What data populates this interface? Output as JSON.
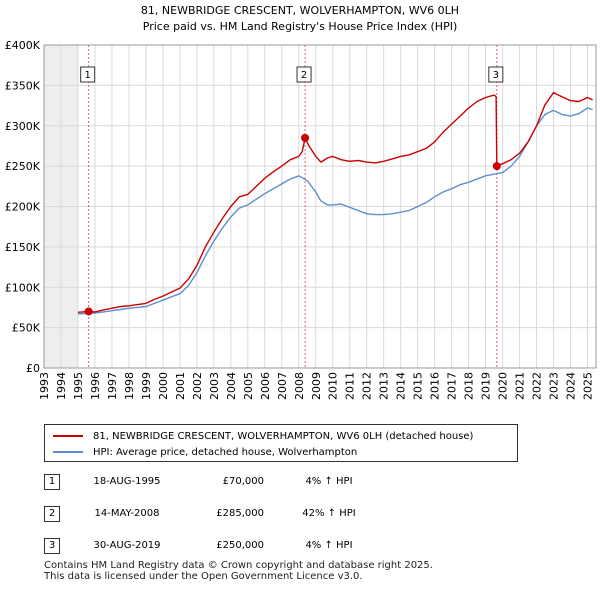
{
  "title": {
    "line1": "81, NEWBRIDGE CRESCENT, WOLVERHAMPTON, WV6 0LH",
    "line2": "Price paid vs. HM Land Registry's House Price Index (HPI)"
  },
  "colors": {
    "price_paid": "#cc0000",
    "hpi": "#5b8fd0",
    "grid": "#d9d9d9",
    "shade": "#eeeeee",
    "vline": "#e06060"
  },
  "chart_data": {
    "type": "line",
    "title": "81, NEWBRIDGE CRESCENT, WOLVERHAMPTON, WV6 0LH — Price paid vs. HM Land Registry's House Price Index (HPI)",
    "xlabel": "",
    "ylabel": "",
    "xlim": [
      1993,
      2025.5
    ],
    "ylim": [
      0,
      400000
    ],
    "x_ticks": [
      "1993",
      "1994",
      "1995",
      "1996",
      "1997",
      "1998",
      "1999",
      "2000",
      "2001",
      "2002",
      "2003",
      "2004",
      "2005",
      "2006",
      "2007",
      "2008",
      "2009",
      "2010",
      "2011",
      "2012",
      "2013",
      "2014",
      "2015",
      "2016",
      "2017",
      "2018",
      "2019",
      "2020",
      "2021",
      "2022",
      "2023",
      "2024",
      "2025"
    ],
    "y_ticks": [
      {
        "value": 0,
        "label": "£0"
      },
      {
        "value": 50000,
        "label": "£50K"
      },
      {
        "value": 100000,
        "label": "£100K"
      },
      {
        "value": 150000,
        "label": "£150K"
      },
      {
        "value": 200000,
        "label": "£200K"
      },
      {
        "value": 250000,
        "label": "£250K"
      },
      {
        "value": 300000,
        "label": "£300K"
      },
      {
        "value": 350000,
        "label": "£350K"
      },
      {
        "value": 400000,
        "label": "£400K"
      }
    ],
    "grid": true,
    "shaded_range": [
      1993,
      1995.0
    ],
    "series": [
      {
        "name": "81, NEWBRIDGE CRESCENT, WOLVERHAMPTON, WV6 0LH (detached house)",
        "x": [
          1995.0,
          1995.63,
          1996.0,
          1996.5,
          1997.0,
          1997.5,
          1998.0,
          1998.5,
          1999.0,
          1999.5,
          2000.0,
          2000.5,
          2001.0,
          2001.5,
          2002.0,
          2002.5,
          2003.0,
          2003.5,
          2004.0,
          2004.5,
          2005.0,
          2005.5,
          2006.0,
          2006.5,
          2007.0,
          2007.5,
          2008.0,
          2008.2,
          2008.37,
          2008.6,
          2009.0,
          2009.3,
          2009.7,
          2010.0,
          2010.5,
          2011.0,
          2011.5,
          2012.0,
          2012.5,
          2013.0,
          2013.5,
          2014.0,
          2014.5,
          2015.0,
          2015.5,
          2016.0,
          2016.5,
          2017.0,
          2017.5,
          2018.0,
          2018.5,
          2019.0,
          2019.5,
          2019.62,
          2019.66,
          2020.0,
          2020.5,
          2021.0,
          2021.5,
          2022.0,
          2022.5,
          2023.0,
          2023.5,
          2024.0,
          2024.5,
          2025.0,
          2025.3
        ],
        "values": [
          69000,
          70000,
          69500,
          72000,
          74000,
          76000,
          77000,
          78500,
          80000,
          85000,
          89000,
          94000,
          99000,
          110000,
          127000,
          150000,
          168000,
          185000,
          200000,
          212000,
          215000,
          225000,
          235000,
          243000,
          250000,
          258000,
          262000,
          268000,
          285000,
          275000,
          262000,
          255000,
          260000,
          262000,
          258000,
          256000,
          257000,
          255000,
          254000,
          256000,
          259000,
          262000,
          264000,
          268000,
          272000,
          280000,
          292000,
          302000,
          312000,
          322000,
          330000,
          335000,
          338000,
          336000,
          250000,
          253000,
          258000,
          266000,
          280000,
          300000,
          326000,
          341000,
          336000,
          331000,
          330000,
          335000,
          332000
        ]
      },
      {
        "name": "HPI: Average price, detached house, Wolverhampton",
        "x": [
          1995.0,
          1995.5,
          1996.0,
          1996.5,
          1997.0,
          1997.5,
          1998.0,
          1998.5,
          1999.0,
          1999.5,
          2000.0,
          2000.5,
          2001.0,
          2001.5,
          2002.0,
          2002.5,
          2003.0,
          2003.5,
          2004.0,
          2004.5,
          2005.0,
          2005.5,
          2006.0,
          2006.5,
          2007.0,
          2007.5,
          2008.0,
          2008.5,
          2009.0,
          2009.3,
          2009.7,
          2010.0,
          2010.5,
          2011.0,
          2011.5,
          2012.0,
          2012.5,
          2013.0,
          2013.5,
          2014.0,
          2014.5,
          2015.0,
          2015.5,
          2016.0,
          2016.5,
          2017.0,
          2017.5,
          2018.0,
          2018.5,
          2019.0,
          2019.5,
          2020.0,
          2020.5,
          2021.0,
          2021.5,
          2022.0,
          2022.5,
          2023.0,
          2023.5,
          2024.0,
          2024.5,
          2025.0,
          2025.3
        ],
        "values": [
          67000,
          67500,
          68000,
          69500,
          71000,
          72500,
          74000,
          75000,
          76000,
          80000,
          84000,
          88000,
          92000,
          102000,
          118000,
          139000,
          157000,
          173000,
          187000,
          198000,
          202000,
          209000,
          216000,
          222000,
          228000,
          234000,
          238000,
          232000,
          218000,
          207000,
          202000,
          202000,
          203000,
          199000,
          195000,
          191000,
          190000,
          190000,
          191000,
          193000,
          195000,
          200000,
          205000,
          212000,
          218000,
          222000,
          227000,
          230000,
          234000,
          238000,
          240000,
          242000,
          250000,
          262000,
          280000,
          300000,
          314000,
          319000,
          314000,
          312000,
          315000,
          322000,
          320000
        ]
      }
    ],
    "transactions": [
      {
        "id": "1",
        "x": 1995.63,
        "value": 70000
      },
      {
        "id": "2",
        "x": 2008.37,
        "value": 285000
      },
      {
        "id": "3",
        "x": 2019.66,
        "value": 250000
      }
    ]
  },
  "legend": {
    "items": [
      {
        "label": "81, NEWBRIDGE CRESCENT, WOLVERHAMPTON, WV6 0LH (detached house)",
        "color": "#cc0000"
      },
      {
        "label": "HPI: Average price, detached house, Wolverhampton",
        "color": "#5b8fd0"
      }
    ]
  },
  "transactions_table": [
    {
      "num": "1",
      "date": "18-AUG-1995",
      "price": "£70,000",
      "hpi": "4% ↑ HPI"
    },
    {
      "num": "2",
      "date": "14-MAY-2008",
      "price": "£285,000",
      "hpi": "42% ↑ HPI"
    },
    {
      "num": "3",
      "date": "30-AUG-2019",
      "price": "£250,000",
      "hpi": "4% ↑ HPI"
    }
  ],
  "footer": {
    "line1": "Contains HM Land Registry data © Crown copyright and database right 2025.",
    "line2": "This data is licensed under the Open Government Licence v3.0."
  }
}
